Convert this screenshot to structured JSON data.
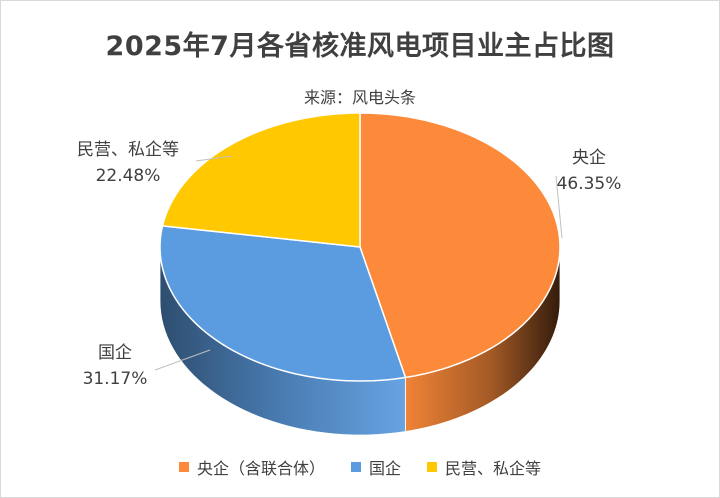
{
  "title": "2025年7月各省核准风电项目业主占比图",
  "subtitle": "来源：风电头条",
  "chart_data": {
    "type": "pie",
    "slices": [
      {
        "legend": "央企（含联合体）",
        "label": "央企",
        "value_text": "46.35%",
        "value": 46.35,
        "color": "#fd8a3a"
      },
      {
        "legend": "国企",
        "label": "国企",
        "value_text": "31.17%",
        "value": 31.17,
        "color": "#5b9bdf"
      },
      {
        "legend": "民营、私企等",
        "label": "民营、私企等",
        "value_text": "22.48%",
        "value": 22.48,
        "color": "#ffc800"
      }
    ],
    "legend_position": "bottom"
  }
}
